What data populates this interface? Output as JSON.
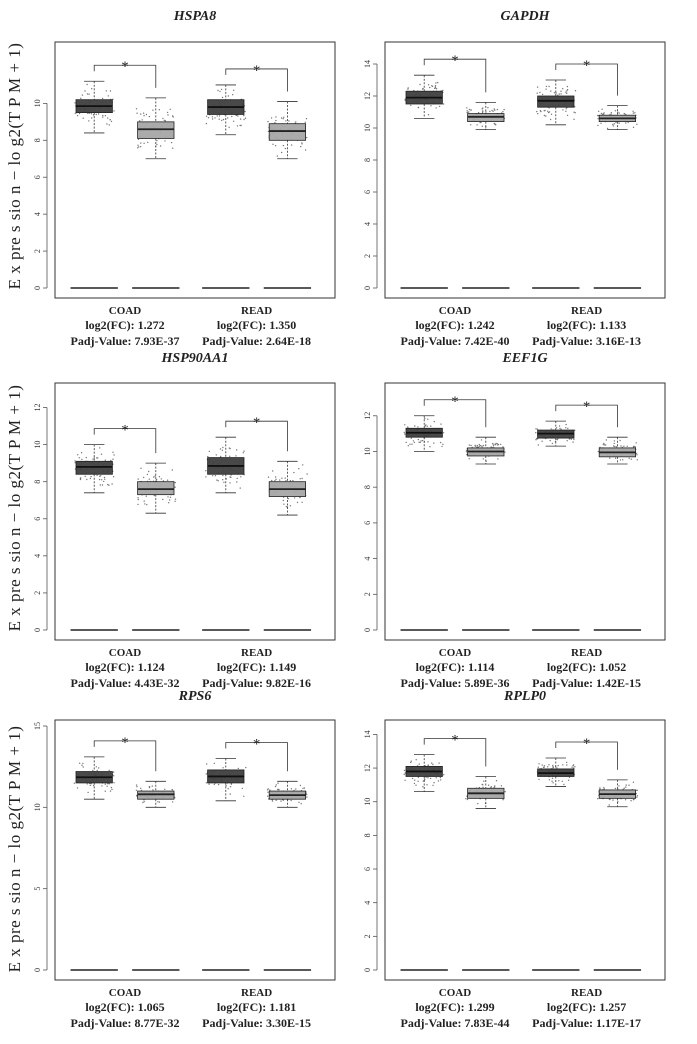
{
  "y_axis_label": "E x pre s sio n − lo g2(T P M + 1)",
  "chart_data": [
    {
      "type": "boxplot",
      "title": "HSPA8",
      "ylim": [
        0,
        13
      ],
      "yticks": [
        0,
        2,
        4,
        6,
        8,
        10
      ],
      "groups": [
        {
          "cancer": "COAD",
          "fc_label": "log2(FC): 1.272",
          "padj_label": "Padj-Value: 7.93E-37",
          "star": "*",
          "tumor": {
            "min": 8.4,
            "q1": 9.5,
            "median": 9.85,
            "q3": 10.2,
            "max": 11.2
          },
          "normal": {
            "min": 7.0,
            "q1": 8.1,
            "median": 8.6,
            "q3": 9.0,
            "max": 10.3
          }
        },
        {
          "cancer": "READ",
          "fc_label": "log2(FC): 1.350",
          "padj_label": "Padj-Value: 2.64E-18",
          "star": "*",
          "tumor": {
            "min": 8.3,
            "q1": 9.4,
            "median": 9.8,
            "q3": 10.2,
            "max": 11.0
          },
          "normal": {
            "min": 7.0,
            "q1": 8.0,
            "median": 8.5,
            "q3": 8.9,
            "max": 10.1
          }
        }
      ]
    },
    {
      "type": "boxplot",
      "title": "GAPDH",
      "ylim": [
        0,
        15
      ],
      "yticks": [
        0,
        2,
        4,
        6,
        8,
        10,
        12,
        14
      ],
      "groups": [
        {
          "cancer": "COAD",
          "fc_label": "log2(FC): 1.242",
          "padj_label": "Padj-Value: 7.42E-40",
          "star": "*",
          "tumor": {
            "min": 10.6,
            "q1": 11.5,
            "median": 11.9,
            "q3": 12.3,
            "max": 13.3
          },
          "normal": {
            "min": 9.9,
            "q1": 10.4,
            "median": 10.7,
            "q3": 10.9,
            "max": 11.6
          }
        },
        {
          "cancer": "READ",
          "fc_label": "log2(FC): 1.133",
          "padj_label": "Padj-Value: 3.16E-13",
          "star": "*",
          "tumor": {
            "min": 10.2,
            "q1": 11.3,
            "median": 11.7,
            "q3": 12.0,
            "max": 13.0
          },
          "normal": {
            "min": 9.9,
            "q1": 10.4,
            "median": 10.6,
            "q3": 10.8,
            "max": 11.4
          }
        }
      ]
    },
    {
      "type": "boxplot",
      "title": "HSP90AA1",
      "ylim": [
        0,
        13
      ],
      "yticks": [
        0,
        2,
        4,
        6,
        8,
        10,
        12
      ],
      "groups": [
        {
          "cancer": "COAD",
          "fc_label": "log2(FC): 1.124",
          "padj_label": "Padj-Value: 4.43E-32",
          "star": "*",
          "tumor": {
            "min": 7.4,
            "q1": 8.4,
            "median": 8.8,
            "q3": 9.1,
            "max": 10.0
          },
          "normal": {
            "min": 6.3,
            "q1": 7.3,
            "median": 7.6,
            "q3": 8.0,
            "max": 9.0
          }
        },
        {
          "cancer": "READ",
          "fc_label": "log2(FC): 1.149",
          "padj_label": "Padj-Value: 9.82E-16",
          "star": "*",
          "tumor": {
            "min": 7.4,
            "q1": 8.4,
            "median": 8.85,
            "q3": 9.3,
            "max": 10.4
          },
          "normal": {
            "min": 6.2,
            "q1": 7.2,
            "median": 7.6,
            "q3": 8.0,
            "max": 9.1
          }
        }
      ]
    },
    {
      "type": "boxplot",
      "title": "EEF1G",
      "ylim": [
        0,
        13.5
      ],
      "yticks": [
        0,
        2,
        4,
        6,
        8,
        10,
        12
      ],
      "groups": [
        {
          "cancer": "COAD",
          "fc_label": "log2(FC): 1.114",
          "padj_label": "Padj-Value: 5.89E-36",
          "star": "*",
          "tumor": {
            "min": 10.0,
            "q1": 10.8,
            "median": 11.05,
            "q3": 11.3,
            "max": 12.0
          },
          "normal": {
            "min": 9.3,
            "q1": 9.75,
            "median": 10.0,
            "q3": 10.2,
            "max": 10.8
          }
        },
        {
          "cancer": "READ",
          "fc_label": "log2(FC): 1.052",
          "padj_label": "Padj-Value: 1.42E-15",
          "star": "*",
          "tumor": {
            "min": 10.3,
            "q1": 10.75,
            "median": 11.0,
            "q3": 11.2,
            "max": 11.7
          },
          "normal": {
            "min": 9.3,
            "q1": 9.7,
            "median": 9.95,
            "q3": 10.2,
            "max": 10.8
          }
        }
      ]
    },
    {
      "type": "boxplot",
      "title": "RPS6",
      "ylim": [
        0,
        15
      ],
      "yticks": [
        0,
        5,
        10,
        15
      ],
      "groups": [
        {
          "cancer": "COAD",
          "fc_label": "log2(FC): 1.065",
          "padj_label": "Padj-Value: 8.77E-32",
          "star": "*",
          "tumor": {
            "min": 10.5,
            "q1": 11.5,
            "median": 11.85,
            "q3": 12.2,
            "max": 13.1
          },
          "normal": {
            "min": 10.0,
            "q1": 10.5,
            "median": 10.8,
            "q3": 11.0,
            "max": 11.6
          }
        },
        {
          "cancer": "READ",
          "fc_label": "log2(FC): 1.181",
          "padj_label": "Padj-Value: 3.30E-15",
          "star": "*",
          "tumor": {
            "min": 10.4,
            "q1": 11.5,
            "median": 11.9,
            "q3": 12.3,
            "max": 13.0
          },
          "normal": {
            "min": 10.0,
            "q1": 10.5,
            "median": 10.75,
            "q3": 11.0,
            "max": 11.6
          }
        }
      ]
    },
    {
      "type": "boxplot",
      "title": "RPLP0",
      "ylim": [
        0,
        14.5
      ],
      "yticks": [
        0,
        2,
        4,
        6,
        8,
        10,
        12,
        14
      ],
      "groups": [
        {
          "cancer": "COAD",
          "fc_label": "log2(FC): 1.299",
          "padj_label": "Padj-Value: 7.83E-44",
          "star": "*",
          "tumor": {
            "min": 10.6,
            "q1": 11.5,
            "median": 11.8,
            "q3": 12.1,
            "max": 12.8
          },
          "normal": {
            "min": 9.6,
            "q1": 10.2,
            "median": 10.5,
            "q3": 10.8,
            "max": 11.5
          }
        },
        {
          "cancer": "READ",
          "fc_label": "log2(FC): 1.257",
          "padj_label": "Padj-Value: 1.17E-17",
          "star": "*",
          "tumor": {
            "min": 10.9,
            "q1": 11.5,
            "median": 11.7,
            "q3": 11.95,
            "max": 12.6
          },
          "normal": {
            "min": 9.7,
            "q1": 10.2,
            "median": 10.45,
            "q3": 10.7,
            "max": 11.3
          }
        }
      ]
    }
  ]
}
